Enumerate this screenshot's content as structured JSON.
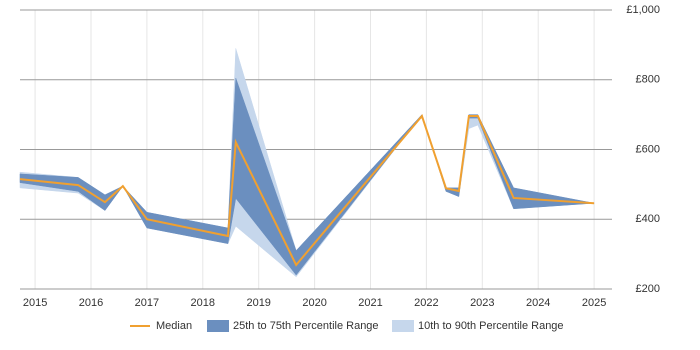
{
  "chart_data": {
    "type": "line",
    "x": [
      2014.73,
      2015.77,
      2016.25,
      2016.57,
      2017.0,
      2018.45,
      2018.59,
      2019.67,
      2021.92,
      2022.35,
      2022.58,
      2022.76,
      2022.92,
      2023.56,
      2025.0
    ],
    "series": [
      {
        "name": "10th to 90th Percentile Range",
        "color": "#c6d7ec",
        "lower": [
          490,
          475,
          425,
          495,
          375,
          330,
          380,
          235,
          700,
          480,
          465,
          660,
          670,
          430,
          446
        ],
        "upper": [
          535,
          520,
          470,
          495,
          420,
          375,
          890,
          310,
          700,
          490,
          490,
          700,
          700,
          490,
          446
        ]
      },
      {
        "name": "25th to 75th Percentile Range",
        "color": "#6b8fbf",
        "lower": [
          505,
          480,
          425,
          495,
          375,
          330,
          460,
          240,
          700,
          480,
          465,
          690,
          690,
          430,
          446
        ],
        "upper": [
          530,
          520,
          470,
          495,
          420,
          375,
          805,
          310,
          700,
          490,
          490,
          700,
          700,
          490,
          446
        ]
      },
      {
        "name": "Median",
        "color": "#f0a030",
        "values": [
          515,
          498,
          449,
          495,
          400,
          352,
          621,
          269,
          696,
          489,
          481,
          696,
          696,
          461,
          446
        ]
      }
    ],
    "xlim": [
      2014.73,
      2025.32
    ],
    "xticks": [
      2015,
      2016,
      2017,
      2018,
      2019,
      2020,
      2021,
      2022,
      2023,
      2024,
      2025
    ],
    "ylim": [
      200,
      1000
    ],
    "yticks": [
      {
        "value": 200,
        "label": "£200"
      },
      {
        "value": 400,
        "label": "£400"
      },
      {
        "value": 600,
        "label": "£600"
      },
      {
        "value": 800,
        "label": "£800"
      },
      {
        "value": 1000,
        "label": "£1,000"
      }
    ],
    "grid": true
  }
}
